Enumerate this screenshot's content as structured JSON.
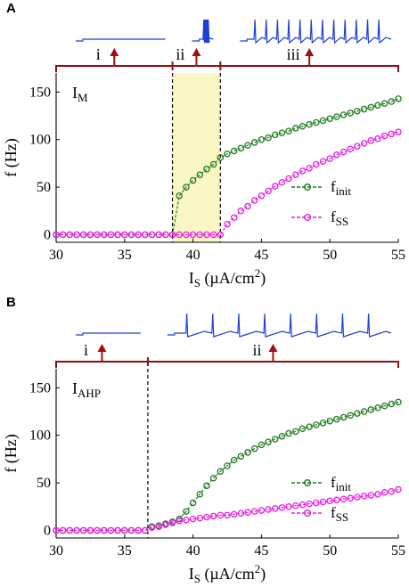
{
  "colors": {
    "finit": "#1e7a1e",
    "fss": "#e81ee0",
    "bracket": "#8b1010",
    "arrow": "#a01010",
    "trace": "#1f3fd6",
    "highlight": "#fbf7c4"
  },
  "chart_data": [
    {
      "type": "scatter",
      "panel_letter": "A",
      "current_label": "I",
      "current_sub": "M",
      "xlabel": "I",
      "xlabel_sub": "S",
      "xlabel_unit": "(µA/cm",
      "xlabel_sup": "2",
      "xlabel_close": ")",
      "ylabel": "f (Hz)",
      "xlim": [
        30,
        55
      ],
      "ylim": [
        -8,
        170
      ],
      "xticks": [
        "30",
        "35",
        "40",
        "45",
        "50",
        "55"
      ],
      "yticks": [
        "0",
        "50",
        "100",
        "150"
      ],
      "xtick_values": [
        30,
        35,
        40,
        45,
        50,
        55
      ],
      "ytick_values": [
        0,
        50,
        100,
        150
      ],
      "legend": {
        "placement": "bottom-right",
        "entries": [
          {
            "name": "f",
            "sub": "init"
          },
          {
            "name": "f",
            "sub": "SS"
          }
        ]
      },
      "dividers": [
        38.5,
        42
      ],
      "highlight": [
        38.5,
        42
      ],
      "regions": [
        {
          "label": "i",
          "from": 30,
          "to": 38.5
        },
        {
          "label": "ii",
          "from": 38.5,
          "to": 42
        },
        {
          "label": "iii",
          "from": 42,
          "to": 55
        }
      ],
      "traces": [
        {
          "region": 0,
          "spikes": 0
        },
        {
          "region": 1,
          "spikes": 7
        },
        {
          "region": 2,
          "spikes": 12
        }
      ],
      "series": [
        {
          "name": "f_init",
          "x": [
            30,
            30.5,
            31,
            31.5,
            32,
            32.5,
            33,
            33.5,
            34,
            34.5,
            35,
            35.5,
            36,
            36.5,
            37,
            37.5,
            38,
            38.5,
            39,
            39.5,
            40,
            40.5,
            41,
            41.5,
            42,
            42.5,
            43,
            43.5,
            44,
            44.5,
            45,
            45.5,
            46,
            46.5,
            47,
            47.5,
            48,
            48.5,
            49,
            49.5,
            50,
            50.5,
            51,
            51.5,
            52,
            52.5,
            53,
            53.5,
            54,
            54.5,
            55
          ],
          "values": [
            0,
            0,
            0,
            0,
            0,
            0,
            0,
            0,
            0,
            0,
            0,
            0,
            0,
            0,
            0,
            0,
            0,
            0,
            41,
            50,
            57,
            63,
            69,
            74,
            81,
            85,
            88,
            91,
            94,
            97,
            100,
            102,
            105,
            107,
            109,
            112,
            114,
            116,
            118,
            120,
            122,
            124,
            126,
            128,
            130,
            132,
            134,
            136,
            138,
            140,
            143
          ]
        },
        {
          "name": "f_SS",
          "x": [
            30,
            30.5,
            31,
            31.5,
            32,
            32.5,
            33,
            33.5,
            34,
            34.5,
            35,
            35.5,
            36,
            36.5,
            37,
            37.5,
            38,
            38.5,
            39,
            39.5,
            40,
            40.5,
            41,
            41.5,
            42,
            42.5,
            43,
            43.5,
            44,
            44.5,
            45,
            45.5,
            46,
            46.5,
            47,
            47.5,
            48,
            48.5,
            49,
            49.5,
            50,
            50.5,
            51,
            51.5,
            52,
            52.5,
            53,
            53.5,
            54,
            54.5,
            55
          ],
          "values": [
            0,
            0,
            0,
            0,
            0,
            0,
            0,
            0,
            0,
            0,
            0,
            0,
            0,
            0,
            0,
            0,
            0,
            0,
            0,
            0,
            0,
            0,
            0,
            0,
            0,
            11,
            18,
            25,
            30,
            36,
            41,
            46,
            51,
            55,
            59,
            63,
            67,
            70,
            74,
            77,
            80,
            84,
            87,
            90,
            93,
            96,
            99,
            101,
            104,
            106,
            108
          ]
        }
      ]
    },
    {
      "type": "scatter",
      "panel_letter": "B",
      "current_label": "I",
      "current_sub": "AHP",
      "xlabel": "I",
      "xlabel_sub": "S",
      "xlabel_unit": "(µA/cm",
      "xlabel_sup": "2",
      "xlabel_close": ")",
      "ylabel": "f (Hz)",
      "xlim": [
        30,
        55
      ],
      "ylim": [
        -8,
        170
      ],
      "xticks": [
        "30",
        "35",
        "40",
        "45",
        "50",
        "55"
      ],
      "yticks": [
        "0",
        "50",
        "100",
        "150"
      ],
      "xtick_values": [
        30,
        35,
        40,
        45,
        50,
        55
      ],
      "ytick_values": [
        0,
        50,
        100,
        150
      ],
      "legend": {
        "placement": "bottom-right",
        "entries": [
          {
            "name": "f",
            "sub": "init"
          },
          {
            "name": "f",
            "sub": "SS"
          }
        ]
      },
      "dividers": [
        36.7
      ],
      "highlight": null,
      "regions": [
        {
          "label": "i",
          "from": 30,
          "to": 36.7
        },
        {
          "label": "ii",
          "from": 36.7,
          "to": 55
        }
      ],
      "traces": [
        {
          "region": 0,
          "spikes": 0
        },
        {
          "region": 1,
          "spikes": 8
        }
      ],
      "series": [
        {
          "name": "f_init",
          "x": [
            30,
            30.5,
            31,
            31.5,
            32,
            32.5,
            33,
            33.5,
            34,
            34.5,
            35,
            35.5,
            36,
            36.5,
            37,
            37.5,
            38,
            38.5,
            39,
            39.5,
            40,
            40.5,
            41,
            41.5,
            42,
            42.5,
            43,
            43.5,
            44,
            44.5,
            45,
            45.5,
            46,
            46.5,
            47,
            47.5,
            48,
            48.5,
            49,
            49.5,
            50,
            50.5,
            51,
            51.5,
            52,
            52.5,
            53,
            53.5,
            54,
            54.5,
            55
          ],
          "values": [
            0,
            0,
            0,
            0,
            0,
            0,
            0,
            0,
            0,
            0,
            0,
            0,
            0,
            0,
            4,
            5,
            7,
            9,
            12,
            20,
            29,
            38,
            47,
            55,
            62,
            68,
            74,
            78,
            82,
            86,
            90,
            93,
            96,
            99,
            102,
            104,
            107,
            109,
            111,
            113,
            115,
            117,
            119,
            121,
            123,
            125,
            127,
            129,
            131,
            133,
            135
          ]
        },
        {
          "name": "f_SS",
          "x": [
            30,
            30.5,
            31,
            31.5,
            32,
            32.5,
            33,
            33.5,
            34,
            34.5,
            35,
            35.5,
            36,
            36.5,
            37,
            37.5,
            38,
            38.5,
            39,
            39.5,
            40,
            40.5,
            41,
            41.5,
            42,
            42.5,
            43,
            43.5,
            44,
            44.5,
            45,
            45.5,
            46,
            46.5,
            47,
            47.5,
            48,
            48.5,
            49,
            49.5,
            50,
            50.5,
            51,
            51.5,
            52,
            52.5,
            53,
            53.5,
            54,
            54.5,
            55
          ],
          "values": [
            0,
            0,
            0,
            0,
            0,
            0,
            0,
            0,
            0,
            0,
            0,
            0,
            0,
            0,
            3,
            4,
            6,
            8,
            10,
            11,
            12,
            13,
            14,
            15,
            16,
            16,
            17,
            18,
            19,
            20,
            21,
            22,
            23,
            24,
            25,
            26,
            27,
            28,
            29,
            30,
            31,
            32,
            33,
            34,
            35,
            36,
            37,
            38,
            40,
            41,
            43
          ]
        }
      ]
    }
  ]
}
